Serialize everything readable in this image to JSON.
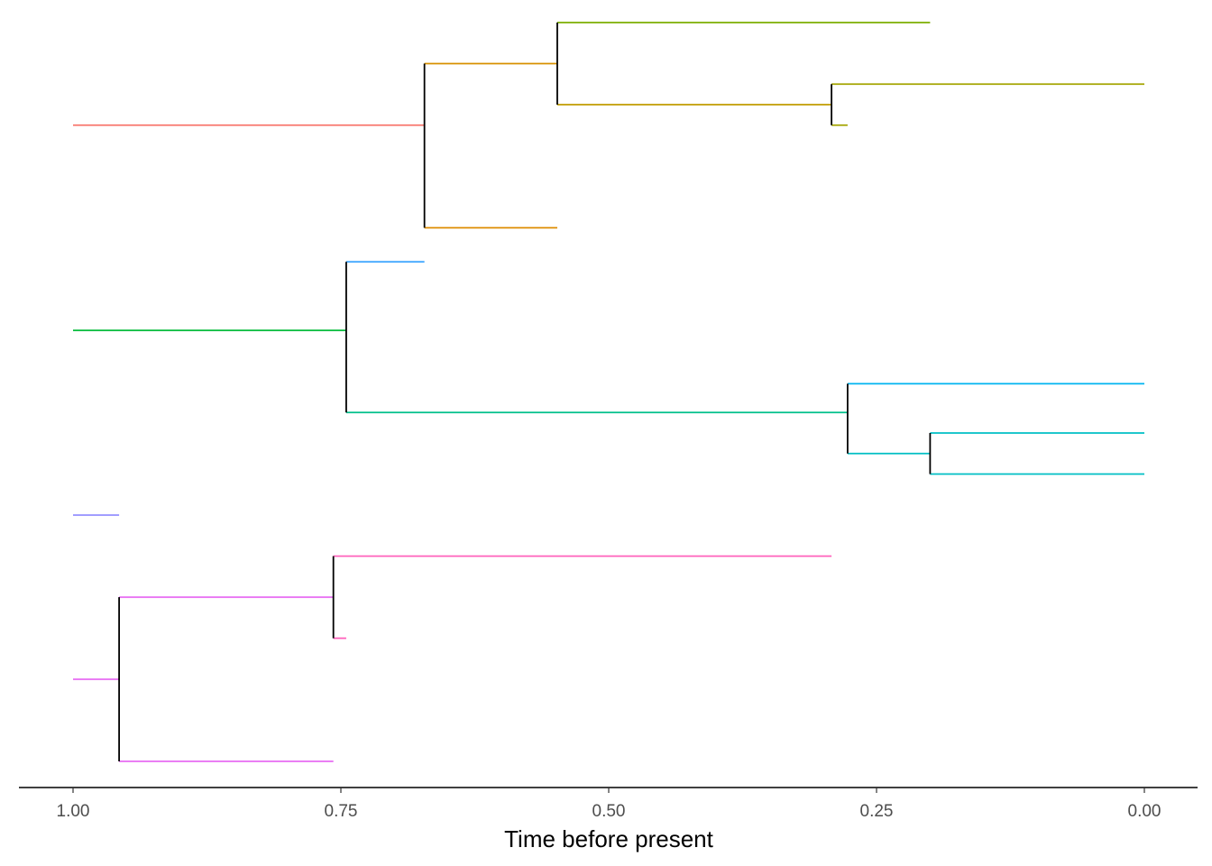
{
  "chart_data": {
    "type": "phylogenetic-tree",
    "xlabel": "Time before present",
    "xlim": [
      1.0,
      0.0
    ],
    "x_reversed": true,
    "x_ticks": [
      {
        "value": 1.0,
        "label": "1.00"
      },
      {
        "value": 0.75,
        "label": "0.75"
      },
      {
        "value": 0.5,
        "label": "0.50"
      },
      {
        "value": 0.25,
        "label": "0.25"
      },
      {
        "value": 0.0,
        "label": "0.00"
      }
    ],
    "grid": false,
    "legend": "none",
    "node_color": "#000000",
    "branches": [
      {
        "row": 2.5,
        "from": 1.0,
        "to": 0.672,
        "color": "#F8766D"
      },
      {
        "row": 1.0,
        "from": 0.672,
        "to": 0.548,
        "color": "#D89000"
      },
      {
        "row": 5.0,
        "from": 0.672,
        "to": 0.548,
        "color": "#DE8C00"
      },
      {
        "row": 0.0,
        "from": 0.548,
        "to": 0.2,
        "color": "#7CAE00"
      },
      {
        "row": 2.0,
        "from": 0.548,
        "to": 0.292,
        "color": "#C09B00"
      },
      {
        "row": 1.5,
        "from": 0.292,
        "to": 0.0,
        "color": "#A3A500"
      },
      {
        "row": 2.5,
        "from": 0.292,
        "to": 0.277,
        "color": "#A3A500"
      },
      {
        "row": 7.5,
        "from": 1.0,
        "to": 0.745,
        "color": "#00BA38"
      },
      {
        "row": 5.83,
        "from": 0.745,
        "to": 0.672,
        "color": "#35A2FF"
      },
      {
        "row": 9.5,
        "from": 0.745,
        "to": 0.277,
        "color": "#00C08B"
      },
      {
        "row": 8.8,
        "from": 0.277,
        "to": 0.0,
        "color": "#00B4F0"
      },
      {
        "row": 10.5,
        "from": 0.277,
        "to": 0.2,
        "color": "#00BFC4"
      },
      {
        "row": 10.0,
        "from": 0.2,
        "to": 0.0,
        "color": "#00BFC4"
      },
      {
        "row": 11.0,
        "from": 0.2,
        "to": 0.0,
        "color": "#00BFC4"
      },
      {
        "row": 12.0,
        "from": 1.0,
        "to": 0.957,
        "color": "#9590FF"
      },
      {
        "row": 16.0,
        "from": 1.0,
        "to": 0.957,
        "color": "#E76BF3"
      },
      {
        "row": 14.0,
        "from": 0.957,
        "to": 0.757,
        "color": "#E76BF3"
      },
      {
        "row": 18.0,
        "from": 0.957,
        "to": 0.757,
        "color": "#E76BF3"
      },
      {
        "row": 13.0,
        "from": 0.757,
        "to": 0.292,
        "color": "#FF62BC"
      },
      {
        "row": 15.0,
        "from": 0.757,
        "to": 0.745,
        "color": "#FF62BC"
      }
    ],
    "nodes": [
      {
        "time": 0.672,
        "rows": [
          1.0,
          5.0
        ]
      },
      {
        "time": 0.548,
        "rows": [
          0.0,
          2.0
        ]
      },
      {
        "time": 0.292,
        "rows": [
          1.5,
          2.5
        ]
      },
      {
        "time": 0.745,
        "rows": [
          5.83,
          9.5
        ]
      },
      {
        "time": 0.277,
        "rows": [
          8.8,
          10.5
        ]
      },
      {
        "time": 0.2,
        "rows": [
          10.0,
          11.0
        ]
      },
      {
        "time": 0.957,
        "rows": [
          14.0,
          18.0
        ]
      },
      {
        "time": 0.757,
        "rows": [
          13.0,
          15.0
        ]
      }
    ]
  }
}
